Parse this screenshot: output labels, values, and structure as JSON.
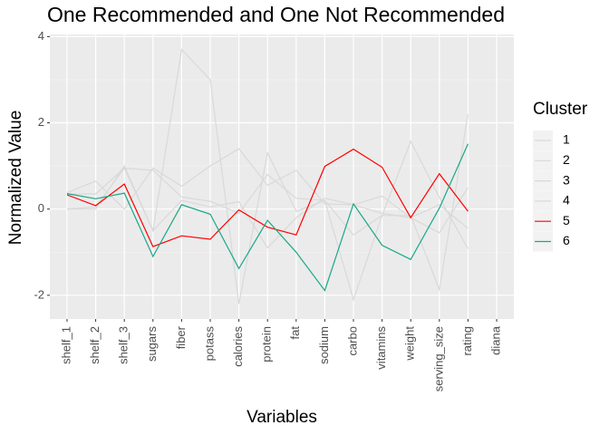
{
  "chart_data": {
    "type": "line",
    "title": "One Recommended and One Not Recommended",
    "x_label": "Variables",
    "y_label": "Normalized Value",
    "legend_title": "Cluster",
    "legend": "right",
    "grid": true,
    "categories": [
      "shelf_1",
      "shelf_2",
      "shelf_3",
      "sugars",
      "fiber",
      "potass",
      "calories",
      "protein",
      "fat",
      "sodium",
      "carbo",
      "vitamins",
      "weight",
      "serving_size",
      "rating",
      "diana"
    ],
    "ylim": [
      -2.55,
      4.05
    ],
    "yticks": [
      -2,
      0,
      2,
      4
    ],
    "series": [
      {
        "name": "1",
        "color": "#d9d9d9",
        "values": [
          0.0,
          0.0,
          1.0,
          -0.5,
          3.7,
          3.0,
          -2.2,
          1.3,
          -0.05,
          0.2,
          -2.1,
          -0.15,
          -0.15,
          -1.87,
          2.2,
          null
        ]
      },
      {
        "name": "2",
        "color": "#d9d9d9",
        "values": [
          0.0,
          0.05,
          0.95,
          0.9,
          0.28,
          0.18,
          -0.1,
          0.8,
          0.25,
          0.2,
          -0.6,
          -0.15,
          1.57,
          0.27,
          -0.92,
          null
        ]
      },
      {
        "name": "3",
        "color": "#d9d9d9",
        "values": [
          0.38,
          0.65,
          0.0,
          0.95,
          0.53,
          1.0,
          1.4,
          0.55,
          0.9,
          0.12,
          0.1,
          0.3,
          -0.2,
          -0.55,
          0.5,
          null
        ]
      },
      {
        "name": "4",
        "color": "#d9d9d9",
        "values": [
          0.35,
          0.35,
          0.95,
          -0.5,
          0.2,
          0.05,
          0.17,
          -0.9,
          -0.2,
          0.25,
          0.1,
          -0.1,
          -0.2,
          0.1,
          -0.45,
          null
        ]
      },
      {
        "name": "5",
        "color": "#ff0000",
        "values": [
          0.33,
          0.08,
          0.58,
          -0.87,
          -0.62,
          -0.7,
          -0.02,
          -0.42,
          -0.6,
          0.99,
          1.39,
          0.97,
          -0.2,
          0.82,
          -0.05,
          null
        ]
      },
      {
        "name": "6",
        "color": "#1aa887",
        "values": [
          0.36,
          0.24,
          0.37,
          -1.1,
          0.1,
          -0.12,
          -1.38,
          -0.26,
          -1.0,
          -1.89,
          0.12,
          -0.84,
          -1.17,
          0.02,
          1.51,
          null
        ]
      }
    ]
  }
}
